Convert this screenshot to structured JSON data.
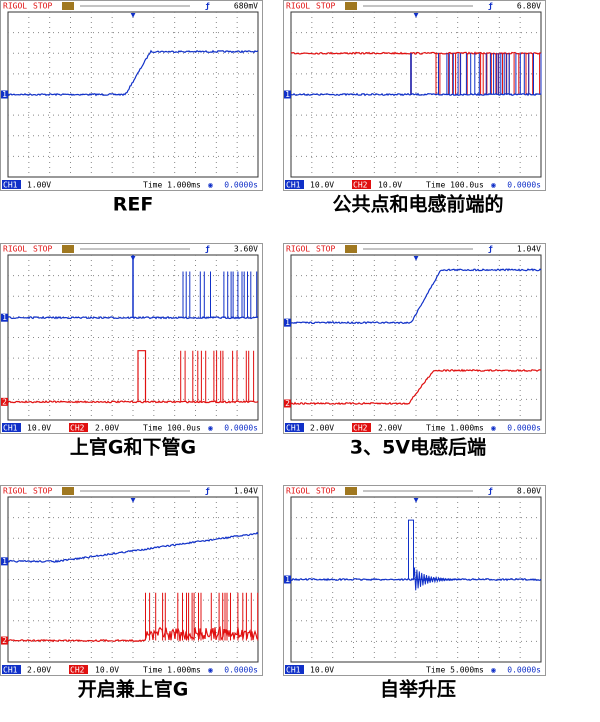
{
  "panels": [
    {
      "brand": "RIGOL",
      "status": "STOP",
      "trigger": "680mV",
      "markers": [
        "1"
      ],
      "footer": [
        "CH1",
        "1.00V"
      ],
      "time": "Time 1.000ms",
      "offset": "0.0000s",
      "caption": "REF"
    },
    {
      "brand": "RIGOL",
      "status": "STOP",
      "trigger": "6.80V",
      "markers": [
        "1"
      ],
      "footer": [
        "CH1",
        "10.0V",
        "CH2",
        "10.0V"
      ],
      "time": "Time 100.0us",
      "offset": "0.0000s",
      "caption": "公共点和电感前端的"
    },
    {
      "brand": "RIGOL",
      "status": "STOP",
      "trigger": "3.60V",
      "markers": [
        "1",
        "2"
      ],
      "footer": [
        "CH1",
        "10.0V",
        "CH2",
        "2.00V"
      ],
      "time": "Time 100.0us",
      "offset": "0.0000s",
      "caption": "上官G和下管G"
    },
    {
      "brand": "RIGOL",
      "status": "STOP",
      "trigger": "1.04V",
      "markers": [
        "1",
        "2"
      ],
      "footer": [
        "CH1",
        "2.00V",
        "CH2",
        "2.00V"
      ],
      "time": "Time 1.000ms",
      "offset": "0.0000s",
      "caption": "3、5V电感后端"
    },
    {
      "brand": "RIGOL",
      "status": "STOP",
      "trigger": "1.04V",
      "markers": [
        "1",
        "2"
      ],
      "footer": [
        "CH1",
        "2.00V",
        "CH2",
        "10.0V"
      ],
      "time": "Time 1.000ms",
      "offset": "0.0000s",
      "caption": "开启兼上官G"
    },
    {
      "brand": "RIGOL",
      "status": "STOP",
      "trigger": "8.00V",
      "markers": [
        "1"
      ],
      "footer": [
        "CH1",
        "10.0V"
      ],
      "time": "Time 5.000ms",
      "offset": "0.0000s",
      "caption": "自举升压"
    }
  ]
}
